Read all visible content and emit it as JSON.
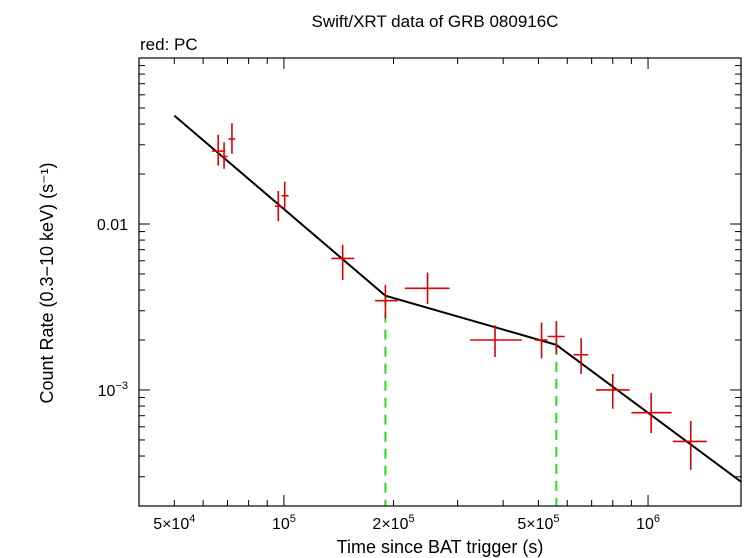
{
  "chart_data": {
    "type": "scatter",
    "title": "Swift/XRT data of GRB 080916C",
    "subtitle": "red: PC",
    "xlabel": "Time since BAT trigger (s)",
    "ylabel": "Count Rate (0.3−10 keV) (s⁻¹)",
    "xscale": "log",
    "yscale": "log",
    "xlim": [
      40000,
      1800000
    ],
    "ylim": [
      0.0002,
      0.1
    ],
    "x_tick_labels": [
      {
        "value": 50000,
        "mant": "5×10",
        "exp": "4"
      },
      {
        "value": 100000,
        "mant": "10",
        "exp": "5"
      },
      {
        "value": 200000,
        "mant": "2×10",
        "exp": "5"
      },
      {
        "value": 500000,
        "mant": "5×10",
        "exp": "5"
      },
      {
        "value": 1000000,
        "mant": "10",
        "exp": "6"
      }
    ],
    "y_tick_labels": [
      {
        "value": 0.01,
        "mant": "0.01",
        "exp": ""
      },
      {
        "value": 0.001,
        "mant": "10",
        "exp": "−3"
      }
    ],
    "colors": {
      "data": "#dd0000",
      "model": "#000000",
      "breaks": "#22dd22",
      "axes": "#000000"
    },
    "data_points": [
      {
        "x": 66000,
        "xlo": 63500,
        "xhi": 69000,
        "y": 0.0275,
        "ylo": 0.0225,
        "yhi": 0.0345
      },
      {
        "x": 68500,
        "xlo": 67000,
        "xhi": 70000,
        "y": 0.0255,
        "ylo": 0.0215,
        "yhi": 0.031
      },
      {
        "x": 72000,
        "xlo": 70500,
        "xhi": 73500,
        "y": 0.0325,
        "ylo": 0.0265,
        "yhi": 0.0405
      },
      {
        "x": 96500,
        "xlo": 94500,
        "xhi": 98500,
        "y": 0.0128,
        "ylo": 0.0104,
        "yhi": 0.0158
      },
      {
        "x": 100500,
        "xlo": 98500,
        "xhi": 103000,
        "y": 0.0148,
        "ylo": 0.0122,
        "yhi": 0.018
      },
      {
        "x": 145000,
        "xlo": 135000,
        "xhi": 156000,
        "y": 0.0062,
        "ylo": 0.0046,
        "yhi": 0.0075
      },
      {
        "x": 190000,
        "xlo": 178000,
        "xhi": 205000,
        "y": 0.00345,
        "ylo": 0.0027,
        "yhi": 0.0043
      },
      {
        "x": 248000,
        "xlo": 215000,
        "xhi": 285000,
        "y": 0.0041,
        "ylo": 0.0033,
        "yhi": 0.0051
      },
      {
        "x": 380000,
        "xlo": 325000,
        "xhi": 450000,
        "y": 0.002,
        "ylo": 0.00158,
        "yhi": 0.00245
      },
      {
        "x": 510000,
        "xlo": 490000,
        "xhi": 530000,
        "y": 0.002,
        "ylo": 0.00155,
        "yhi": 0.00255
      },
      {
        "x": 560000,
        "xlo": 530000,
        "xhi": 590000,
        "y": 0.0021,
        "ylo": 0.00165,
        "yhi": 0.0026
      },
      {
        "x": 655000,
        "xlo": 625000,
        "xhi": 685000,
        "y": 0.00163,
        "ylo": 0.00125,
        "yhi": 0.00205
      },
      {
        "x": 800000,
        "xlo": 720000,
        "xhi": 890000,
        "y": 0.001,
        "ylo": 0.00077,
        "yhi": 0.00125
      },
      {
        "x": 1020000,
        "xlo": 900000,
        "xhi": 1160000,
        "y": 0.00073,
        "ylo": 0.00055,
        "yhi": 0.00096
      },
      {
        "x": 1310000,
        "xlo": 1170000,
        "xhi": 1450000,
        "y": 0.00049,
        "ylo": 0.00033,
        "yhi": 0.00065
      }
    ],
    "model_line": [
      {
        "x": 50000,
        "y": 0.045
      },
      {
        "x": 190000,
        "y": 0.0037
      },
      {
        "x": 560000,
        "y": 0.00187
      },
      {
        "x": 1800000,
        "y": 0.00028
      }
    ],
    "break_times": [
      190000,
      560000
    ]
  }
}
